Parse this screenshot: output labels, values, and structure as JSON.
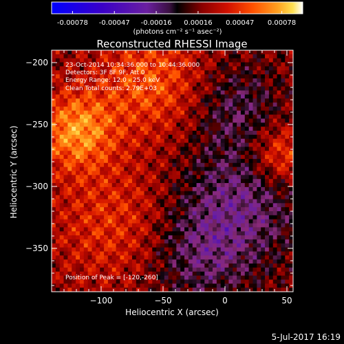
{
  "colorbar": {
    "tick_labels": [
      "-0.00078",
      "-0.00047",
      "-0.00016",
      "0.00016",
      "0.00047",
      "0.00078"
    ],
    "units": "(photons cm⁻² s⁻¹ asec⁻²)"
  },
  "annotations": {
    "time": "23-Oct-2014 10:34:36.000 to 10:44:36.000",
    "detectors": "Detectors: 3F 8F 9F, Att 0",
    "energy": "Energy Range: 12.0 - 25.0 keV",
    "clean": "Clean     Total counts: 2.79E+03",
    "peak": "Position of Peak = [-120,-260]"
  },
  "timestamp": "5-Jul-2017 16:19",
  "chart_data": {
    "type": "heatmap",
    "title": "Reconstructed RHESSI Image",
    "xlabel": "Heliocentric X (arcsec)",
    "ylabel": "Heliocentric Y (arcsec)",
    "xlim": [
      -140,
      55
    ],
    "ylim": [
      -385,
      -190
    ],
    "x_ticks": [
      -100,
      -50,
      0,
      50
    ],
    "y_ticks": [
      -200,
      -250,
      -300,
      -350
    ],
    "x_tick_labels": [
      "−100",
      "−50",
      "0",
      "50"
    ],
    "y_tick_labels": [
      "−200",
      "−250",
      "−300",
      "−350"
    ],
    "color_range": [
      -0.00078,
      0.00078
    ],
    "colormap": [
      "#0000ff",
      "#3a00c8",
      "#6a1fa0",
      "#8a2a7a",
      "#000000",
      "#8b0000",
      "#d01000",
      "#ff5000",
      "#ffa020",
      "#ffe050",
      "#ffffff"
    ],
    "peak_position": [
      -120,
      -260
    ]
  }
}
